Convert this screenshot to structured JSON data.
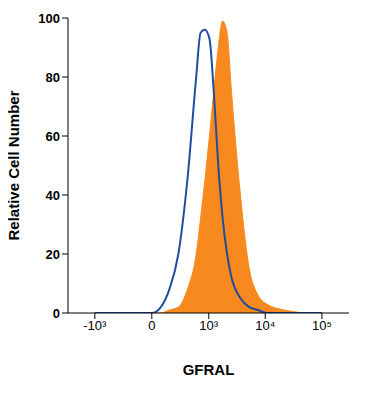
{
  "chart_data": {
    "type": "histogram",
    "x_label": "GFRAL",
    "y_label": "Relative Cell Number",
    "x": [
      -1000,
      0,
      75,
      155,
      260,
      400,
      590,
      710,
      850,
      1030,
      1230,
      1480,
      1770,
      2120,
      2540,
      3650,
      5230,
      7500,
      10700,
      22000,
      65000,
      100000
    ],
    "series": [
      {
        "type": "line",
        "color": "#1f4e9c",
        "values": [
          0,
          0,
          2,
          8,
          20,
          45,
          80,
          95,
          96,
          93,
          75,
          50,
          32,
          20,
          12,
          5,
          2,
          1,
          0,
          0,
          0,
          0
        ]
      },
      {
        "type": "area",
        "color": "#f7891f",
        "values": [
          0,
          0,
          0,
          1,
          2,
          8,
          20,
          32,
          45,
          60,
          75,
          90,
          99,
          95,
          75,
          40,
          15,
          6,
          3,
          1,
          0,
          0
        ]
      }
    ],
    "xlim": [
      -3000,
      300000
    ],
    "xticks": [
      {
        "value": -1000,
        "label": "-10³"
      },
      0,
      {
        "value": 1000,
        "label": "10³"
      },
      {
        "value": 10000,
        "label": "10⁴"
      },
      {
        "value": 100000,
        "label": "10⁵"
      }
    ],
    "ylim": [
      0,
      100
    ],
    "yticks": [
      0,
      20,
      40,
      60,
      80,
      100
    ],
    "grid": false
  }
}
